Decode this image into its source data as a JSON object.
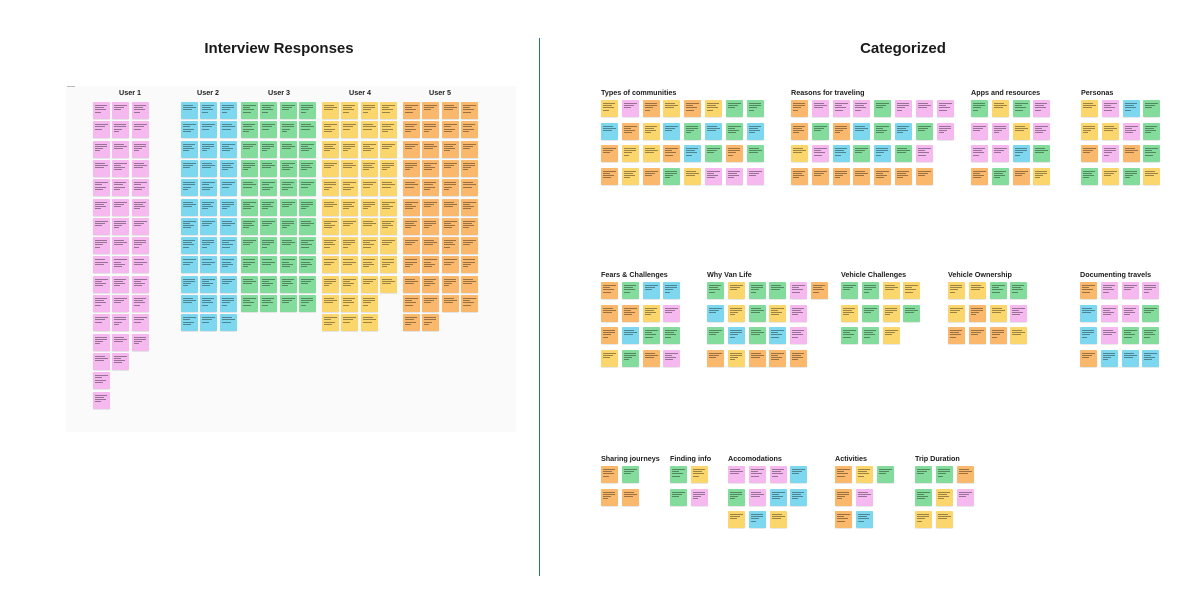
{
  "boards": {
    "interview": {
      "title": "Interview Responses"
    },
    "categorized": {
      "title": "Categorized"
    }
  },
  "colors": {
    "pink": "#f6b9ef",
    "blue": "#7dd7ee",
    "green": "#84dc9c",
    "yellow": "#fbd66d",
    "orange": "#f9b86b"
  },
  "users": [
    {
      "label": "User 1",
      "color": "pink",
      "counts": [
        16,
        14,
        13
      ]
    },
    {
      "label": "User 2",
      "color": "blue",
      "counts": [
        12,
        12,
        12
      ]
    },
    {
      "label": "User 3",
      "color": "green",
      "counts": [
        11,
        11,
        11,
        11
      ]
    },
    {
      "label": "User 4",
      "color": "yellow",
      "counts": [
        12,
        12,
        12,
        10
      ]
    },
    {
      "label": "User 5",
      "color": "orange",
      "counts": [
        12,
        12,
        11,
        11
      ]
    }
  ],
  "categories": [
    {
      "label": "Types of communities",
      "rows": [
        [
          "yellow",
          "pink",
          "orange",
          "yellow",
          "orange",
          "yellow",
          "green",
          "green"
        ],
        [
          "blue",
          "orange",
          "yellow",
          "blue",
          "green",
          "blue",
          "green",
          "blue"
        ],
        [
          "orange",
          "yellow",
          "yellow",
          "orange",
          "blue",
          "green",
          "orange",
          "green"
        ],
        [
          "orange",
          "yellow",
          "orange",
          "green",
          "yellow",
          "pink",
          "pink",
          "pink"
        ]
      ]
    },
    {
      "label": "Reasons for traveling",
      "rows": [
        [
          "orange",
          "pink",
          "pink",
          "pink",
          "green",
          "pink",
          "pink",
          "pink"
        ],
        [
          "orange",
          "green",
          "orange",
          "blue",
          "green",
          "blue",
          "green",
          "pink"
        ],
        [
          "yellow",
          "pink",
          "blue",
          "green",
          "blue",
          "green",
          "pink"
        ],
        [
          "orange",
          "orange",
          "orange",
          "orange",
          "orange",
          "orange",
          "orange"
        ]
      ]
    },
    {
      "label": "Apps and resources",
      "rows": [
        [
          "green",
          "yellow",
          "green",
          "pink"
        ],
        [
          "pink",
          "pink",
          "yellow",
          "pink"
        ],
        [
          "pink",
          "pink",
          "blue",
          "green"
        ],
        [
          "orange",
          "green",
          "orange",
          "yellow"
        ]
      ]
    },
    {
      "label": "Personas",
      "rows": [
        [
          "yellow",
          "pink",
          "blue",
          "green"
        ],
        [
          "yellow",
          "yellow",
          "pink",
          "green"
        ],
        [
          "orange",
          "pink",
          "orange",
          "green"
        ],
        [
          "green",
          "yellow",
          "green",
          "yellow"
        ]
      ]
    },
    {
      "label": "Fears &  Challenges",
      "rows": [
        [
          "orange",
          "green",
          "blue",
          "blue"
        ],
        [
          "orange",
          "orange",
          "yellow",
          "pink"
        ],
        [
          "orange",
          "blue",
          "green",
          "green"
        ],
        [
          "yellow",
          "green",
          "orange",
          "pink"
        ]
      ]
    },
    {
      "label": "Why Van Life",
      "rows": [
        [
          "green",
          "yellow",
          "green",
          "green",
          "pink",
          "orange"
        ],
        [
          "blue",
          "yellow",
          "green",
          "yellow",
          "pink"
        ],
        [
          "green",
          "blue",
          "green",
          "blue",
          "pink"
        ],
        [
          "orange",
          "yellow",
          "orange",
          "orange",
          "orange"
        ]
      ]
    },
    {
      "label": "Vehicle Challenges",
      "rows": [
        [
          "green",
          "green",
          "yellow",
          "yellow"
        ],
        [
          "yellow",
          "green",
          "yellow",
          "green"
        ],
        [
          "green",
          "green",
          "yellow"
        ]
      ]
    },
    {
      "label": "Vehicle Ownership",
      "rows": [
        [
          "yellow",
          "yellow",
          "green",
          "green"
        ],
        [
          "yellow",
          "orange",
          "yellow",
          "pink"
        ],
        [
          "orange",
          "orange",
          "orange",
          "yellow"
        ]
      ]
    },
    {
      "label": "Documenting travels",
      "rows": [
        [
          "orange",
          "pink",
          "pink",
          "pink"
        ],
        [
          "blue",
          "pink",
          "pink",
          "green"
        ],
        [
          "blue",
          "pink",
          "green",
          "green"
        ],
        [
          "orange",
          "blue",
          "blue",
          "blue"
        ]
      ]
    },
    {
      "label": "Sharing journeys",
      "rows": [
        [
          "orange",
          "green"
        ],
        [
          "orange",
          "orange"
        ]
      ]
    },
    {
      "label": "Finding info",
      "rows": [
        [
          "green",
          "yellow"
        ],
        [
          "green",
          "pink"
        ]
      ]
    },
    {
      "label": "Accomodations",
      "rows": [
        [
          "pink",
          "pink",
          "pink",
          "blue"
        ],
        [
          "green",
          "pink",
          "blue",
          "blue"
        ],
        [
          "yellow",
          "blue",
          "yellow"
        ]
      ]
    },
    {
      "label": "Activities",
      "rows": [
        [
          "orange",
          "yellow",
          "green"
        ],
        [
          "orange",
          "pink"
        ],
        [
          "orange",
          "blue"
        ]
      ]
    },
    {
      "label": "Trip Duration",
      "rows": [
        [
          "green",
          "green",
          "orange"
        ],
        [
          "green",
          "yellow",
          "pink"
        ],
        [
          "yellow",
          "yellow"
        ]
      ]
    }
  ]
}
